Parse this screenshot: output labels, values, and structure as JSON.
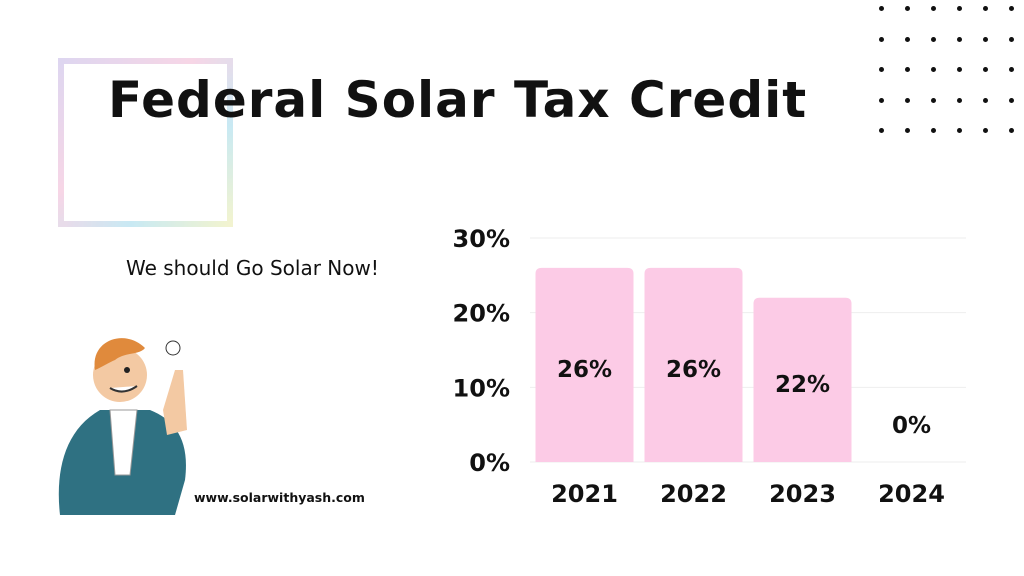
{
  "header": {
    "title": "Federal Solar Tax Credit"
  },
  "tagline": "We should Go Solar Now!",
  "website": "www.solarwithyash.com",
  "illustration": {
    "icon": "man-pointing-lightbulb-icon"
  },
  "decoration": {
    "dot_grid": "dot-grid-icon",
    "frame": "gradient-frame"
  },
  "colors": {
    "bar": "#fccbe6",
    "text": "#111111",
    "grid": "#eeeeee",
    "jacket": "#2f7182"
  },
  "chart_data": {
    "type": "bar",
    "categories": [
      "2021",
      "2022",
      "2023",
      "2024"
    ],
    "values": [
      26,
      26,
      22,
      0
    ],
    "data_labels": [
      "26%",
      "26%",
      "22%",
      "0%"
    ],
    "yticks": [
      "0%",
      "10%",
      "20%",
      "30%"
    ],
    "ylim": [
      0,
      30
    ],
    "grid": true,
    "xlabel": "",
    "ylabel": "",
    "title": ""
  }
}
